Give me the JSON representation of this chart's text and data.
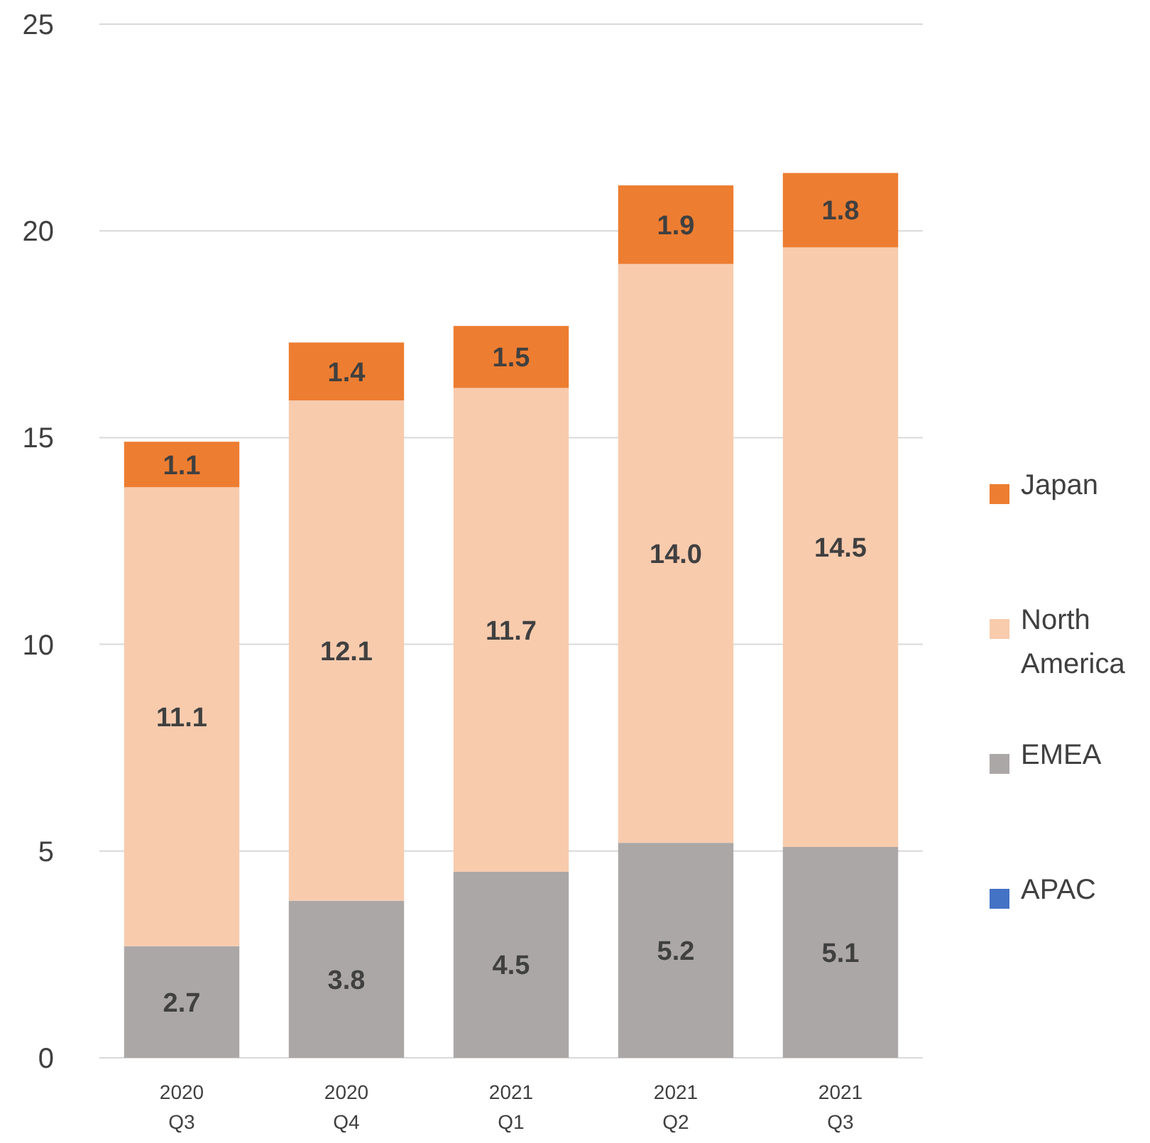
{
  "chart_data": {
    "type": "bar",
    "stacked": true,
    "categories": [
      "2020 Q3",
      "2020 Q4",
      "2021 Q1",
      "2021 Q2",
      "2021 Q3"
    ],
    "series": [
      {
        "name": "APAC",
        "color": "#4472c4",
        "values": [
          0,
          0,
          0,
          0,
          0
        ],
        "value_labels": [
          null,
          null,
          null,
          null,
          null
        ]
      },
      {
        "name": "EMEA",
        "color": "#aba7a6",
        "values": [
          2.7,
          3.8,
          4.5,
          5.2,
          5.1
        ],
        "value_labels": [
          "2.7",
          "3.8",
          "4.5",
          "5.2",
          "5.1"
        ]
      },
      {
        "name": "North America",
        "color": "#f8cbad",
        "values": [
          11.1,
          12.1,
          11.7,
          14.0,
          14.5
        ],
        "value_labels": [
          "11.1",
          "12.1",
          "11.7",
          "14.0",
          "14.5"
        ]
      },
      {
        "name": "Japan",
        "color": "#ed7d31",
        "values": [
          1.1,
          1.4,
          1.5,
          1.9,
          1.8
        ],
        "value_labels": [
          "1.1",
          "1.4",
          "1.5",
          "1.9",
          "1.8"
        ]
      }
    ],
    "ylim": [
      0,
      25
    ],
    "yticks": [
      0,
      5,
      10,
      15,
      20,
      25
    ],
    "grid": "y",
    "legend": "right"
  }
}
